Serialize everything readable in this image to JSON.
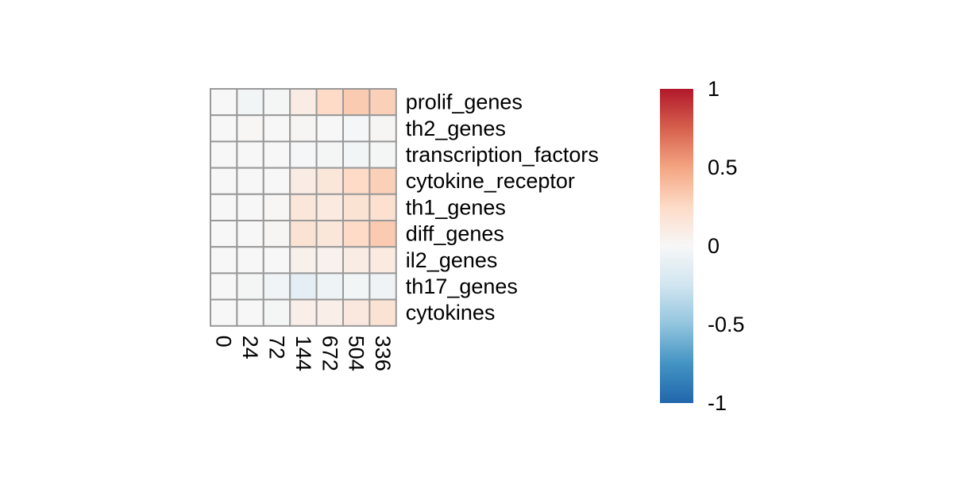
{
  "chart_data": {
    "type": "heatmap",
    "columns": [
      "0",
      "24",
      "72",
      "144",
      "672",
      "504",
      "336"
    ],
    "rows": [
      "prolif_genes",
      "th2_genes",
      "transcription_factors",
      "cytokine_receptor",
      "th1_genes",
      "diff_genes",
      "il2_genes",
      "th17_genes",
      "cytokines"
    ],
    "values": [
      [
        0.0,
        -0.03,
        -0.02,
        0.1,
        0.25,
        0.33,
        0.3
      ],
      [
        0.0,
        0.01,
        0.0,
        0.02,
        0.0,
        -0.01,
        0.02
      ],
      [
        0.0,
        0.0,
        0.0,
        -0.01,
        -0.02,
        -0.03,
        -0.02
      ],
      [
        0.0,
        0.0,
        0.0,
        0.1,
        0.15,
        0.25,
        0.3
      ],
      [
        0.0,
        0.0,
        0.01,
        0.15,
        0.12,
        0.18,
        0.2
      ],
      [
        0.0,
        0.0,
        0.02,
        0.18,
        0.15,
        0.25,
        0.33
      ],
      [
        0.0,
        0.0,
        0.0,
        0.06,
        0.05,
        0.1,
        0.12
      ],
      [
        0.0,
        -0.02,
        -0.04,
        -0.12,
        -0.06,
        -0.03,
        -0.05
      ],
      [
        0.0,
        0.0,
        -0.02,
        0.08,
        0.08,
        0.13,
        0.18
      ]
    ],
    "color_scale": {
      "min": -1,
      "max": 1,
      "ticks": [
        {
          "value": 1,
          "label": "1"
        },
        {
          "value": 0.5,
          "label": "0.5"
        },
        {
          "value": 0,
          "label": "0"
        },
        {
          "value": -0.5,
          "label": "-0.5"
        },
        {
          "value": -1,
          "label": "-1"
        }
      ],
      "palette": [
        "#2166AC",
        "#4393C3",
        "#92C5DE",
        "#D1E5F0",
        "#F7F7F7",
        "#FDDBC7",
        "#F4A582",
        "#D6604D",
        "#B2182B"
      ]
    },
    "grid_color": "#999999"
  }
}
